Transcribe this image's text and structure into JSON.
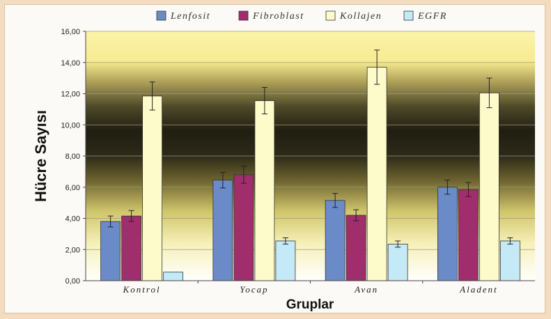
{
  "chart_data": {
    "type": "bar",
    "title": "",
    "xlabel": "Gruplar",
    "ylabel": "Hücre Sayısı",
    "ylim": [
      0,
      16
    ],
    "ytick_step": 2,
    "ytick_labels": [
      "0,00",
      "2,00",
      "4,00",
      "6,00",
      "8,00",
      "10,00",
      "12,00",
      "14,00",
      "16,00"
    ],
    "grid": true,
    "legend_position": "top",
    "categories": [
      "Kontrol",
      "Yocap",
      "Avan",
      "Aladent"
    ],
    "series": [
      {
        "name": "Lenfosit",
        "color": "#6a8bc7",
        "values": [
          3.8,
          6.45,
          5.15,
          6.0
        ],
        "errors": [
          0.35,
          0.5,
          0.45,
          0.45
        ]
      },
      {
        "name": "Fibroblast",
        "color": "#a02d6c",
        "values": [
          4.15,
          6.8,
          4.2,
          5.85
        ],
        "errors": [
          0.35,
          0.55,
          0.35,
          0.45
        ]
      },
      {
        "name": "Kollajen",
        "color": "#fdfbc9",
        "values": [
          11.85,
          11.55,
          13.7,
          12.05
        ],
        "errors": [
          0.9,
          0.85,
          1.1,
          0.95
        ]
      },
      {
        "name": "EGFR",
        "color": "#c4e9f7",
        "values": [
          0.55,
          2.55,
          2.35,
          2.55
        ],
        "errors": [
          0.0,
          0.2,
          0.2,
          0.2
        ]
      }
    ]
  }
}
